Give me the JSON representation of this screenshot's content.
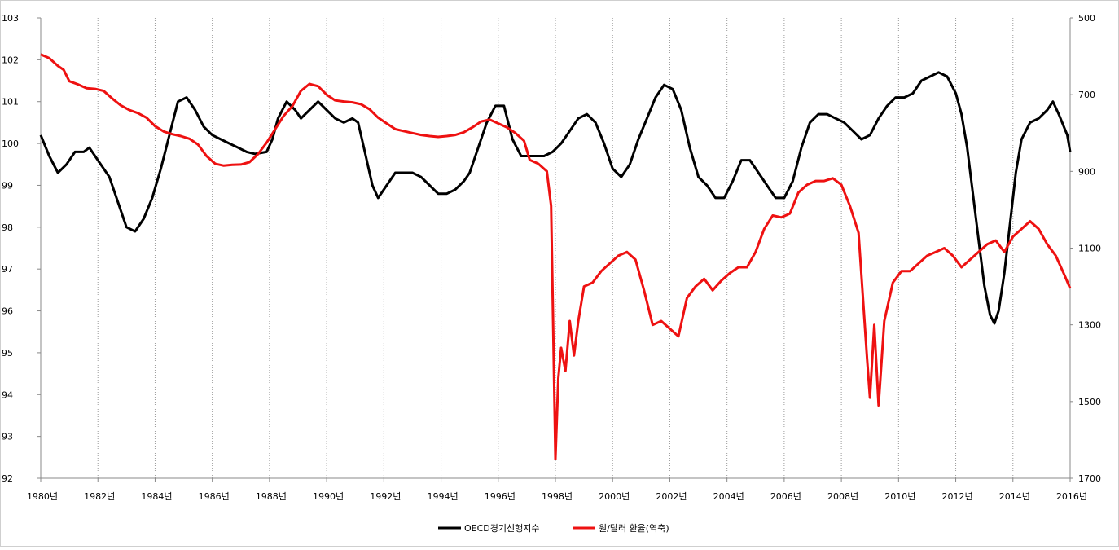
{
  "chart_data": {
    "type": "line",
    "title": "",
    "x_range": [
      1980,
      2016
    ],
    "x_tick_labels": [
      "1980년",
      "1982년",
      "1984년",
      "1986년",
      "1988년",
      "1990년",
      "1992년",
      "1994년",
      "1996년",
      "1998년",
      "2000년",
      "2002년",
      "2004년",
      "2006년",
      "2008년",
      "2010년",
      "2012년",
      "2014년",
      "2016년"
    ],
    "grid": "vertical-dotted",
    "legend_position": "bottom-center",
    "y_left": {
      "min": 92,
      "max": 103,
      "ticks": [
        "92",
        "93",
        "94",
        "95",
        "96",
        "97",
        "98",
        "99",
        "100",
        "101",
        "102",
        "103"
      ]
    },
    "y_right": {
      "min": 500,
      "max": 1700,
      "inverted": true,
      "ticks": [
        "500",
        "700",
        "900",
        "1100",
        "1300",
        "1500",
        "1700"
      ]
    },
    "series": [
      {
        "name": "OECD경기선행지수",
        "axis": "left",
        "color": "#000000",
        "points": [
          [
            1980.0,
            100.2
          ],
          [
            1980.3,
            99.7
          ],
          [
            1980.6,
            99.3
          ],
          [
            1980.9,
            99.5
          ],
          [
            1981.2,
            99.8
          ],
          [
            1981.5,
            99.8
          ],
          [
            1981.7,
            99.9
          ],
          [
            1982.0,
            99.6
          ],
          [
            1982.4,
            99.2
          ],
          [
            1982.7,
            98.6
          ],
          [
            1983.0,
            98.0
          ],
          [
            1983.3,
            97.9
          ],
          [
            1983.6,
            98.2
          ],
          [
            1983.9,
            98.7
          ],
          [
            1984.2,
            99.4
          ],
          [
            1984.5,
            100.2
          ],
          [
            1984.8,
            101.0
          ],
          [
            1985.1,
            101.1
          ],
          [
            1985.4,
            100.8
          ],
          [
            1985.7,
            100.4
          ],
          [
            1986.0,
            100.2
          ],
          [
            1986.3,
            100.1
          ],
          [
            1986.6,
            100.0
          ],
          [
            1986.9,
            99.9
          ],
          [
            1987.2,
            99.8
          ],
          [
            1987.5,
            99.75
          ],
          [
            1987.9,
            99.8
          ],
          [
            1988.1,
            100.1
          ],
          [
            1988.3,
            100.6
          ],
          [
            1988.6,
            101.0
          ],
          [
            1988.9,
            100.8
          ],
          [
            1989.1,
            100.6
          ],
          [
            1989.4,
            100.8
          ],
          [
            1989.7,
            101.0
          ],
          [
            1990.0,
            100.8
          ],
          [
            1990.3,
            100.6
          ],
          [
            1990.6,
            100.5
          ],
          [
            1990.9,
            100.6
          ],
          [
            1991.1,
            100.5
          ],
          [
            1991.3,
            99.9
          ],
          [
            1991.6,
            99.0
          ],
          [
            1991.8,
            98.7
          ],
          [
            1992.1,
            99.0
          ],
          [
            1992.4,
            99.3
          ],
          [
            1992.7,
            99.3
          ],
          [
            1993.0,
            99.3
          ],
          [
            1993.3,
            99.2
          ],
          [
            1993.6,
            99.0
          ],
          [
            1993.9,
            98.8
          ],
          [
            1994.2,
            98.8
          ],
          [
            1994.5,
            98.9
          ],
          [
            1994.8,
            99.1
          ],
          [
            1995.0,
            99.3
          ],
          [
            1995.3,
            99.9
          ],
          [
            1995.6,
            100.5
          ],
          [
            1995.9,
            100.9
          ],
          [
            1996.2,
            100.9
          ],
          [
            1996.5,
            100.1
          ],
          [
            1996.8,
            99.7
          ],
          [
            1997.0,
            99.7
          ],
          [
            1997.3,
            99.7
          ],
          [
            1997.6,
            99.7
          ],
          [
            1997.9,
            99.8
          ],
          [
            1998.2,
            100.0
          ],
          [
            1998.5,
            100.3
          ],
          [
            1998.8,
            100.6
          ],
          [
            1999.1,
            100.7
          ],
          [
            1999.4,
            100.5
          ],
          [
            1999.7,
            100.0
          ],
          [
            2000.0,
            99.4
          ],
          [
            2000.3,
            99.2
          ],
          [
            2000.6,
            99.5
          ],
          [
            2000.9,
            100.1
          ],
          [
            2001.2,
            100.6
          ],
          [
            2001.5,
            101.1
          ],
          [
            2001.8,
            101.4
          ],
          [
            2002.1,
            101.3
          ],
          [
            2002.4,
            100.8
          ],
          [
            2002.7,
            99.9
          ],
          [
            2003.0,
            99.2
          ],
          [
            2003.3,
            99.0
          ],
          [
            2003.6,
            98.7
          ],
          [
            2003.9,
            98.7
          ],
          [
            2004.2,
            99.1
          ],
          [
            2004.5,
            99.6
          ],
          [
            2004.8,
            99.6
          ],
          [
            2005.1,
            99.3
          ],
          [
            2005.4,
            99.0
          ],
          [
            2005.7,
            98.7
          ],
          [
            2006.0,
            98.7
          ],
          [
            2006.3,
            99.1
          ],
          [
            2006.6,
            99.9
          ],
          [
            2006.9,
            100.5
          ],
          [
            2007.2,
            100.7
          ],
          [
            2007.5,
            100.7
          ],
          [
            2007.8,
            100.6
          ],
          [
            2008.1,
            100.5
          ],
          [
            2008.4,
            100.3
          ],
          [
            2008.7,
            100.1
          ],
          [
            2009.0,
            100.2
          ],
          [
            2009.3,
            100.6
          ],
          [
            2009.6,
            100.9
          ],
          [
            2009.9,
            101.1
          ],
          [
            2010.2,
            101.1
          ],
          [
            2010.5,
            101.2
          ],
          [
            2010.8,
            101.5
          ],
          [
            2011.1,
            101.6
          ],
          [
            2011.4,
            101.7
          ],
          [
            2011.7,
            101.6
          ],
          [
            2012.0,
            101.2
          ],
          [
            2012.2,
            100.7
          ],
          [
            2012.4,
            99.9
          ],
          [
            2012.6,
            98.8
          ],
          [
            2012.8,
            97.7
          ],
          [
            2013.0,
            96.6
          ],
          [
            2013.2,
            95.9
          ],
          [
            2013.35,
            95.7
          ],
          [
            2013.5,
            96.0
          ],
          [
            2013.7,
            96.9
          ],
          [
            2013.9,
            98.1
          ],
          [
            2014.1,
            99.3
          ],
          [
            2014.3,
            100.1
          ],
          [
            2014.6,
            100.5
          ],
          [
            2014.9,
            100.6
          ],
          [
            2015.2,
            100.8
          ],
          [
            2015.4,
            101.0
          ],
          [
            2015.6,
            100.7
          ],
          [
            2015.9,
            100.2
          ],
          [
            2016.0,
            99.8
          ]
        ]
      },
      {
        "name": "원/달러 환율(역축)",
        "axis": "right",
        "color": "#ee1111",
        "points": [
          [
            1980.0,
            595
          ],
          [
            1980.3,
            605
          ],
          [
            1980.6,
            625
          ],
          [
            1980.8,
            635
          ],
          [
            1981.0,
            665
          ],
          [
            1981.3,
            673
          ],
          [
            1981.6,
            683
          ],
          [
            1981.9,
            685
          ],
          [
            1982.2,
            690
          ],
          [
            1982.5,
            710
          ],
          [
            1982.8,
            728
          ],
          [
            1983.1,
            740
          ],
          [
            1983.4,
            748
          ],
          [
            1983.7,
            760
          ],
          [
            1984.0,
            782
          ],
          [
            1984.3,
            796
          ],
          [
            1984.6,
            803
          ],
          [
            1984.9,
            808
          ],
          [
            1985.2,
            815
          ],
          [
            1985.5,
            830
          ],
          [
            1985.8,
            860
          ],
          [
            1986.1,
            880
          ],
          [
            1986.4,
            885
          ],
          [
            1986.7,
            883
          ],
          [
            1987.0,
            882
          ],
          [
            1987.3,
            876
          ],
          [
            1987.6,
            855
          ],
          [
            1987.9,
            825
          ],
          [
            1988.2,
            790
          ],
          [
            1988.5,
            755
          ],
          [
            1988.8,
            730
          ],
          [
            1989.1,
            690
          ],
          [
            1989.4,
            672
          ],
          [
            1989.7,
            678
          ],
          [
            1990.0,
            700
          ],
          [
            1990.3,
            715
          ],
          [
            1990.6,
            718
          ],
          [
            1990.9,
            720
          ],
          [
            1991.2,
            725
          ],
          [
            1991.5,
            738
          ],
          [
            1991.8,
            760
          ],
          [
            1992.1,
            775
          ],
          [
            1992.4,
            790
          ],
          [
            1992.7,
            795
          ],
          [
            1993.0,
            800
          ],
          [
            1993.3,
            805
          ],
          [
            1993.6,
            808
          ],
          [
            1993.9,
            810
          ],
          [
            1994.2,
            808
          ],
          [
            1994.5,
            805
          ],
          [
            1994.8,
            798
          ],
          [
            1995.1,
            785
          ],
          [
            1995.4,
            770
          ],
          [
            1995.7,
            765
          ],
          [
            1996.0,
            775
          ],
          [
            1996.3,
            785
          ],
          [
            1996.6,
            800
          ],
          [
            1996.9,
            820
          ],
          [
            1997.1,
            870
          ],
          [
            1997.4,
            880
          ],
          [
            1997.7,
            900
          ],
          [
            1997.85,
            990
          ],
          [
            1997.92,
            1300
          ],
          [
            1998.0,
            1650
          ],
          [
            1998.1,
            1440
          ],
          [
            1998.2,
            1360
          ],
          [
            1998.35,
            1420
          ],
          [
            1998.5,
            1290
          ],
          [
            1998.65,
            1380
          ],
          [
            1998.8,
            1290
          ],
          [
            1999.0,
            1200
          ],
          [
            1999.3,
            1190
          ],
          [
            1999.6,
            1160
          ],
          [
            1999.9,
            1140
          ],
          [
            2000.2,
            1120
          ],
          [
            2000.5,
            1110
          ],
          [
            2000.8,
            1130
          ],
          [
            2001.1,
            1210
          ],
          [
            2001.4,
            1300
          ],
          [
            2001.7,
            1290
          ],
          [
            2002.0,
            1310
          ],
          [
            2002.3,
            1330
          ],
          [
            2002.6,
            1230
          ],
          [
            2002.9,
            1200
          ],
          [
            2003.2,
            1180
          ],
          [
            2003.5,
            1210
          ],
          [
            2003.8,
            1185
          ],
          [
            2004.1,
            1165
          ],
          [
            2004.4,
            1150
          ],
          [
            2004.7,
            1150
          ],
          [
            2005.0,
            1110
          ],
          [
            2005.3,
            1050
          ],
          [
            2005.6,
            1015
          ],
          [
            2005.9,
            1020
          ],
          [
            2006.2,
            1010
          ],
          [
            2006.5,
            955
          ],
          [
            2006.8,
            935
          ],
          [
            2007.1,
            925
          ],
          [
            2007.4,
            925
          ],
          [
            2007.7,
            918
          ],
          [
            2008.0,
            935
          ],
          [
            2008.3,
            990
          ],
          [
            2008.6,
            1060
          ],
          [
            2008.9,
            1390
          ],
          [
            2009.0,
            1490
          ],
          [
            2009.15,
            1300
          ],
          [
            2009.3,
            1510
          ],
          [
            2009.5,
            1290
          ],
          [
            2009.8,
            1190
          ],
          [
            2010.1,
            1160
          ],
          [
            2010.4,
            1160
          ],
          [
            2010.7,
            1140
          ],
          [
            2011.0,
            1120
          ],
          [
            2011.3,
            1110
          ],
          [
            2011.6,
            1100
          ],
          [
            2011.9,
            1120
          ],
          [
            2012.2,
            1150
          ],
          [
            2012.5,
            1130
          ],
          [
            2012.8,
            1110
          ],
          [
            2013.1,
            1090
          ],
          [
            2013.4,
            1080
          ],
          [
            2013.7,
            1110
          ],
          [
            2014.0,
            1070
          ],
          [
            2014.3,
            1050
          ],
          [
            2014.6,
            1030
          ],
          [
            2014.9,
            1050
          ],
          [
            2015.2,
            1090
          ],
          [
            2015.5,
            1120
          ],
          [
            2015.8,
            1170
          ],
          [
            2016.0,
            1205
          ]
        ]
      }
    ]
  }
}
